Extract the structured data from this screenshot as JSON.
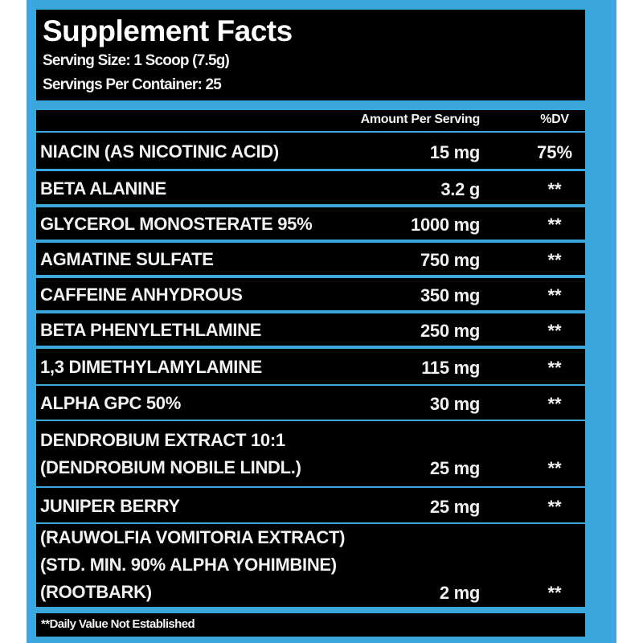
{
  "title": "Supplement Facts",
  "serving_size": "Serving Size: 1 Scoop (7.5g)",
  "servings_per_container": "Servings Per Container: 25",
  "columns": {
    "amount": "Amount Per Serving",
    "dv": "%DV"
  },
  "rows": [
    {
      "name": [
        "NIACIN (AS NICOTINIC ACID)"
      ],
      "amount": "15 mg",
      "dv": "75%"
    },
    {
      "name": [
        "BETA ALANINE"
      ],
      "amount": "3.2 g",
      "dv": "**"
    },
    {
      "name": [
        "GLYCEROL MONOSTERATE 95%"
      ],
      "amount": "1000 mg",
      "dv": "**"
    },
    {
      "name": [
        "AGMATINE SULFATE"
      ],
      "amount": "750 mg",
      "dv": "**"
    },
    {
      "name": [
        "CAFFEINE ANHYDROUS"
      ],
      "amount": "350 mg",
      "dv": "**"
    },
    {
      "name": [
        "BETA PHENYLETHLAMINE"
      ],
      "amount": "250 mg",
      "dv": "**"
    },
    {
      "name": [
        "1,3 DIMETHYLAMYLAMINE"
      ],
      "amount": "115 mg",
      "dv": "**"
    },
    {
      "name": [
        "ALPHA GPC 50%"
      ],
      "amount": "30 mg",
      "dv": "**"
    },
    {
      "name": [
        "DENDROBIUM EXTRACT 10:1",
        "(DENDROBIUM NOBILE LINDL.)"
      ],
      "amount": "25 mg",
      "dv": "**"
    },
    {
      "name": [
        "JUNIPER BERRY"
      ],
      "amount": "25 mg",
      "dv": "**"
    },
    {
      "name": [
        "(RAUWOLFIA VOMITORIA EXTRACT)",
        "(STD. MIN. 90% ALPHA YOHIMBINE)",
        "(ROOTBARK)"
      ],
      "amount": "2 mg",
      "dv": "**"
    }
  ],
  "footnote": "**Daily Value Not Established",
  "colors": {
    "border": "#3aa8dc",
    "background": "#000000",
    "text": "#f2f2f2"
  }
}
